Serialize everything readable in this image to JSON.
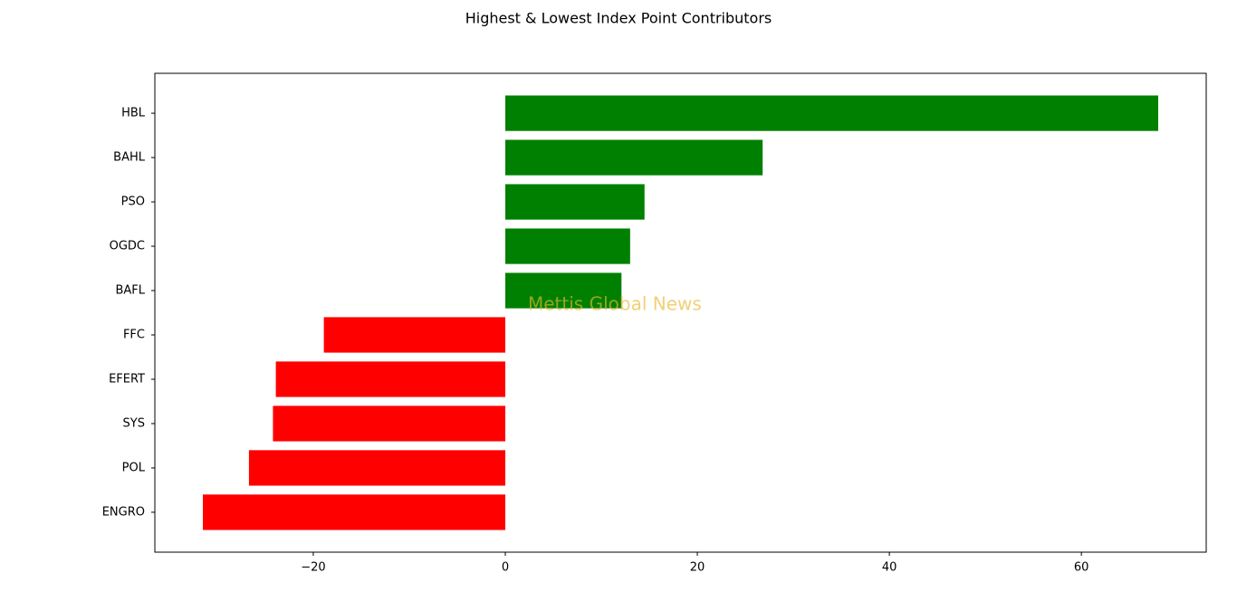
{
  "chart_data": {
    "type": "barh",
    "title": "Highest & Lowest Index Point Contributors",
    "watermark": "Mettis Global News",
    "categories": [
      "HBL",
      "BAHL",
      "PSO",
      "OGDC",
      "BAFL",
      "FFC",
      "EFERT",
      "SYS",
      "POL",
      "ENGRO"
    ],
    "values": [
      68.0,
      26.8,
      14.5,
      13.0,
      12.1,
      -18.9,
      -23.9,
      -24.2,
      -26.7,
      -31.5
    ],
    "colors": [
      "#008000",
      "#008000",
      "#008000",
      "#008000",
      "#008000",
      "#ff0000",
      "#ff0000",
      "#ff0000",
      "#ff0000",
      "#ff0000"
    ],
    "xlim": [
      -36.5,
      73.0
    ],
    "xticks": [
      {
        "value": -20,
        "label": "−20"
      },
      0,
      20,
      40,
      60
    ]
  }
}
